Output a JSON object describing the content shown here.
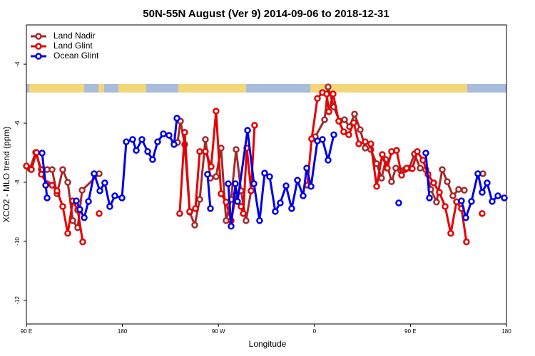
{
  "chart_data": {
    "type": "line",
    "title": "50N-55N August (Ver 9)   2014-09-06 to 2018-12-31",
    "x_label": "Longitude",
    "y_label": "XCO2 - MLO trend (ppm)",
    "xlim": [
      90,
      540
    ],
    "ylim": [
      -12.8,
      -2.67
    ],
    "xticks": [
      {
        "value": 90,
        "label": "90 E"
      },
      180,
      {
        "value": 270,
        "label": "90 W"
      },
      {
        "value": 360,
        "label": "0"
      },
      {
        "value": 450,
        "label": "90 E"
      },
      {
        "value": 540,
        "label": "180"
      }
    ],
    "yticks": [
      -4,
      -6,
      -8,
      -10,
      -12
    ],
    "legend": "top-left",
    "series": [
      {
        "name": "Land Nadir",
        "color": "#a52a2a",
        "x": [
          93.3,
          98.7,
          104.0,
          109.4,
          114.1,
          118.7,
          124.1,
          128.8,
          133.5,
          138.1,
          142.2,
          158.2,
          null,
          231.7,
          234.4,
          238.4,
          243.1,
          247.8,
          252.5,
          257.8,
          262.5,
          267.8,
          272.5,
          277.2,
          281.9,
          286.6,
          291.2,
          295.9,
          300.6,
          null,
          357.4,
          360.8,
          369.5,
          372.8,
          378.2,
          383.5,
          388.2,
          392.9,
          397.6,
          402.9,
          407.6,
          412.9,
          418.3,
          422.9,
          426.9,
          432.3,
          436.3,
          441.0,
          445.0,
          449.0,
          453.7,
          459.1,
          464.4,
          469.1,
          474.4,
          479.8,
          484.5,
          489.8,
          495.2,
          500.5,
          null,
          517.9
        ],
        "values": [
          -7.54,
          -6.99,
          -7.57,
          -7.57,
          -7.57,
          -8.39,
          -7.57,
          -8.0,
          -9.3,
          -9.54,
          -8.27,
          -7.71,
          null,
          -6.65,
          -5.93,
          -6.72,
          -9.01,
          -9.45,
          -8.58,
          -6.55,
          -7.86,
          -7.81,
          -6.84,
          -9.3,
          -8.58,
          -6.89,
          -8.29,
          -9.3,
          -8.29,
          null,
          -6.53,
          -6.46,
          -5.88,
          -4.77,
          -5.45,
          -5.93,
          -5.88,
          -6.12,
          -5.69,
          -6.22,
          -6.84,
          -6.89,
          -7.37,
          -7.86,
          -7.23,
          -7.98,
          -7.52,
          -7.61,
          -7.57,
          -7.52,
          -7.04,
          -7.52,
          -7.57,
          -8.24,
          -8.67,
          -7.57,
          -7.98,
          -8.46,
          -8.24,
          -8.27,
          null,
          -7.71
        ]
      },
      {
        "name": "Land Glint",
        "color": "#e60000",
        "x": [
          90,
          94.7,
          99.4,
          104.0,
          109.4,
          114.1,
          118.7,
          124.1,
          128.8,
          133.5,
          138.1,
          142.8,
          null,
          158.2,
          null,
          233.7,
          238.4,
          243.1,
          248.5,
          252.5,
          257.8,
          263.2,
          267.8,
          272.5,
          277.2,
          281.9,
          286.6,
          291.2,
          293.3,
          296.6,
          300.6,
          303.9,
          null,
          353.4,
          357.4,
          362.8,
          367.5,
          371.5,
          373.5,
          377.5,
          382.8,
          387.5,
          392.2,
          396.9,
          401.6,
          407.6,
          412.9,
          418.3,
          423.6,
          428.3,
          432.3,
          437.0,
          441.7,
          446.4,
          451.7,
          456.4,
          461.7,
          466.4,
          471.8,
          477.1,
          482.5,
          487.8,
          493.2,
          497.8,
          502.5,
          null,
          517.2
        ],
        "values": [
          -7.45,
          -7.57,
          -6.99,
          -7.73,
          -8.05,
          -8.1,
          -8.29,
          -8.82,
          -9.73,
          -8.63,
          -8.94,
          -10.02,
          null,
          -9.06,
          null,
          -9.06,
          -6.31,
          -8.99,
          -8.89,
          -6.96,
          -6.96,
          -7.47,
          -5.59,
          -8.39,
          -8.67,
          -9.3,
          -8.41,
          -8.82,
          -9.06,
          -6.84,
          -8.29,
          -6.07,
          null,
          -8.1,
          -6.53,
          -5.16,
          -4.96,
          -5.01,
          -5.61,
          -5.01,
          -5.93,
          -6.29,
          -6.39,
          -5.98,
          -6.7,
          -6.63,
          -6.7,
          -8.14,
          -7.06,
          -7.52,
          -6.96,
          -6.92,
          -7.76,
          -7.52,
          -7.54,
          -6.96,
          -7.25,
          -7.73,
          -8.02,
          -8.34,
          -8.82,
          -9.73,
          -8.66,
          -8.89,
          -10.02,
          null,
          -9.06
        ]
      },
      {
        "name": "Ocean Glint",
        "color": "#0000e6",
        "x": [
          104.7,
          108.1,
          109.4,
          null,
          136.8,
          140.1,
          144.2,
          148.2,
          153.5,
          158.9,
          163.5,
          168.2,
          172.9,
          179.6,
          183.6,
          189.6,
          193.0,
          198.3,
          203.7,
          208.3,
          213.0,
          218.4,
          223.7,
          228.4,
          231.1,
          null,
          259.8,
          262.5,
          null,
          279.2,
          281.9,
          285.9,
          287.9,
          297.3,
          303.3,
          308.6,
          313.3,
          318.0,
          323.3,
          328.0,
          333.4,
          338.7,
          344.1,
          349.4,
          352.8,
          356.8,
          362.8,
          367.5,
          372.8,
          378.2,
          null,
          439.0,
          null,
          464.4,
          467.8,
          null,
          497.8,
          501.9,
          507.2,
          513.2,
          517.2,
          521.9,
          526.6,
          532.0,
          538.0
        ],
        "values": [
          -7.01,
          -8.1,
          -8.53,
          null,
          -8.63,
          -8.92,
          -9.2,
          -8.65,
          -7.71,
          -8.29,
          -8.02,
          -8.82,
          -8.46,
          -8.53,
          -6.63,
          -6.55,
          -6.92,
          -6.55,
          -6.96,
          -7.23,
          -6.63,
          -6.36,
          -6.41,
          -6.72,
          -5.83,
          null,
          -7.73,
          -8.89,
          null,
          -8.05,
          -9.49,
          -8.05,
          -8.65,
          -6.24,
          -8.05,
          -9.3,
          -7.69,
          -7.81,
          -8.99,
          -8.7,
          -8.12,
          -8.89,
          -7.93,
          -8.46,
          -7.52,
          -8.14,
          -6.6,
          -6.55,
          -7.25,
          -6.39,
          null,
          -8.7,
          null,
          -7.01,
          -8.53,
          null,
          -8.63,
          -9.2,
          -8.65,
          -7.71,
          -8.34,
          -8.02,
          -8.65,
          -8.46,
          -8.53
        ]
      }
    ]
  }
}
